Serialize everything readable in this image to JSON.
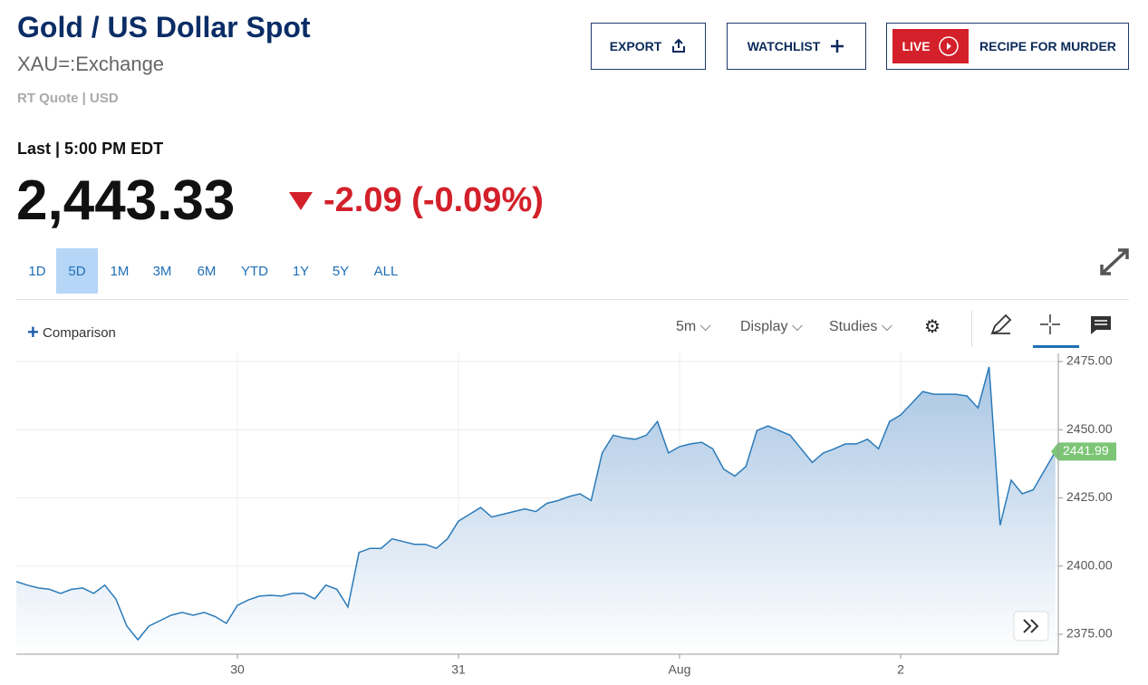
{
  "header": {
    "title": "Gold / US Dollar Spot",
    "symbol": "XAU=:Exchange",
    "quote_info": "RT Quote | USD",
    "buttons": {
      "export": "EXPORT",
      "watchlist": "WATCHLIST",
      "live": "LIVE",
      "live_show": "RECIPE FOR MURDER"
    }
  },
  "quote": {
    "last_label": "Last | 5:00 PM EDT",
    "price": "2,443.33",
    "change": "-2.09 (-0.09%)"
  },
  "ranges": {
    "items": [
      "1D",
      "5D",
      "1M",
      "3M",
      "6M",
      "YTD",
      "1Y",
      "5Y",
      "ALL"
    ],
    "selected": "5D"
  },
  "toolbar": {
    "comparison": "Comparison",
    "interval": "5m",
    "display": "Display",
    "studies": "Studies"
  },
  "chart_data": {
    "type": "line",
    "grid": true,
    "series": [
      {
        "name": "XAU=",
        "color": "#2b7bb9",
        "values": [
          2394.3,
          2393,
          2392,
          2391.5,
          2390,
          2391.5,
          2392,
          2390,
          2393,
          2388,
          2378,
          2373,
          2378,
          2380,
          2382,
          2383,
          2382,
          2383,
          2381.5,
          2379,
          2385.6,
          2387.6,
          2389,
          2389.3,
          2389,
          2390,
          2390,
          2388,
          2393,
          2391.5,
          2385,
          2405,
          2406.5,
          2406.5,
          2410,
          2409,
          2408,
          2408,
          2406.5,
          2410,
          2416.5,
          2419,
          2421.5,
          2418,
          2419,
          2420,
          2421,
          2420,
          2423,
          2424,
          2425.5,
          2426.5,
          2424,
          2441.5,
          2448,
          2447,
          2446.5,
          2448,
          2453,
          2441.5,
          2443.8,
          2444.8,
          2445.4,
          2443,
          2435.5,
          2433,
          2436.5,
          2449.7,
          2451.4,
          2449.7,
          2448,
          2443,
          2438,
          2441.5,
          2443,
          2444.8,
          2444.8,
          2446.5,
          2443,
          2453,
          2455.4,
          2459.7,
          2464,
          2463,
          2463,
          2463,
          2462.4,
          2458,
          2473,
          2415,
          2431.5,
          2426.5,
          2428,
          2435,
          2441.99
        ]
      }
    ],
    "xlim": [
      0,
      94.26
    ],
    "xticks": [
      {
        "value": 20,
        "label": "30"
      },
      {
        "value": 40,
        "label": "31"
      },
      {
        "value": 60,
        "label": "Aug"
      },
      {
        "value": 80,
        "label": "2"
      }
    ],
    "ylim": [
      2367.7,
      2478
    ],
    "yticks": [
      {
        "value": 2375,
        "label": "2375.00"
      },
      {
        "value": 2400,
        "label": "2400.00"
      },
      {
        "value": 2425,
        "label": "2425.00"
      },
      {
        "value": 2450,
        "label": "2450.00"
      },
      {
        "value": 2475,
        "label": "2475.00"
      }
    ]
  }
}
